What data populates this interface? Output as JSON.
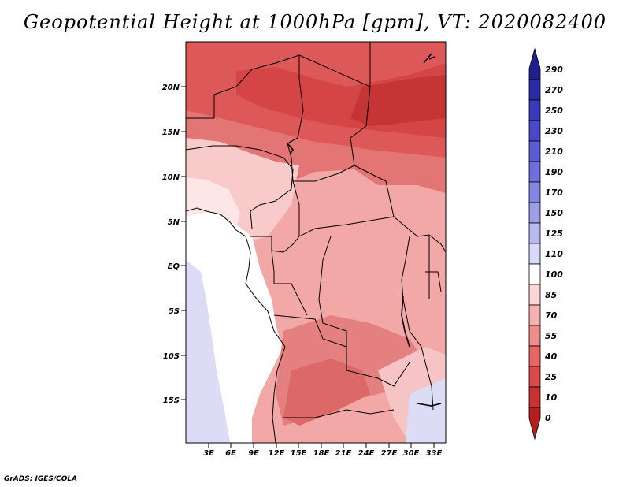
{
  "title": "Geopotential Height at 1000hPa [gpm], VT: 2020082400",
  "credit": "GrADS: IGES/COLA",
  "map": {
    "lat_labels": [
      "20N",
      "15N",
      "10N",
      "5N",
      "EQ",
      "5S",
      "10S",
      "15S"
    ],
    "lat_values": [
      20,
      15,
      10,
      5,
      0,
      -5,
      -10,
      -15
    ],
    "lon_labels": [
      "3E",
      "6E",
      "9E",
      "12E",
      "15E",
      "18E",
      "21E",
      "24E",
      "27E",
      "30E",
      "33E"
    ],
    "lon_values": [
      3,
      6,
      9,
      12,
      15,
      18,
      21,
      24,
      27,
      30,
      33
    ],
    "lon_range": [
      0,
      34.5
    ],
    "lat_range": [
      -19.5,
      24.5
    ]
  },
  "colorbar": {
    "labels": [
      "290",
      "270",
      "250",
      "230",
      "210",
      "190",
      "170",
      "150",
      "125",
      "110",
      "100",
      "85",
      "70",
      "55",
      "40",
      "25",
      "10",
      "0"
    ],
    "colors": [
      "#1f1f8f",
      "#2b2ba8",
      "#3939bb",
      "#4a4ac9",
      "#5c5cd4",
      "#6f6fdd",
      "#8585e4",
      "#9d9dea",
      "#b9b9f1",
      "#d9d9f8",
      "#ffffff",
      "#fbd6d6",
      "#f6b0b0",
      "#ef8c8c",
      "#e66666",
      "#dd4a4a",
      "#c93232",
      "#b11f1f"
    ]
  }
}
